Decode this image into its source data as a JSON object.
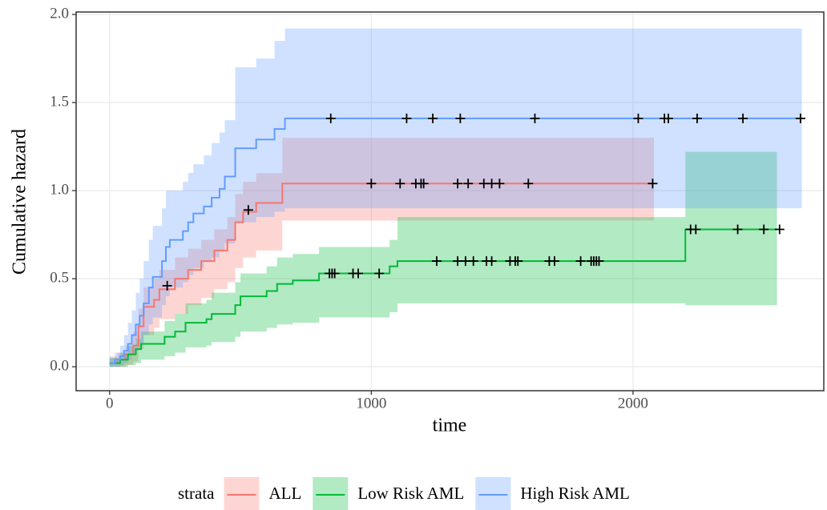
{
  "chart_data": {
    "type": "step",
    "x_label": "time",
    "y_label": "Cumulative hazard",
    "legend_title": "strata",
    "legend_position": "bottom",
    "grid": true,
    "xlim": [
      -128,
      2729
    ],
    "ylim": [
      -0.136,
      2.014
    ],
    "xticks": [
      0,
      1000,
      2000
    ],
    "yticks": [
      {
        "value": 0,
        "label": "0.0"
      },
      {
        "value": 0.5,
        "label": "0.5"
      },
      {
        "value": 1,
        "label": "1.0"
      },
      {
        "value": 1.5,
        "label": "1.5"
      },
      {
        "value": 2,
        "label": "2.0"
      }
    ],
    "series": [
      {
        "name": "ALL",
        "color": "#F8766D",
        "x": [
          0,
          30,
          60,
          90,
          110,
          130,
          170,
          190,
          250,
          300,
          350,
          400,
          450,
          480,
          510,
          560,
          660,
          2080
        ],
        "values": [
          0.02,
          0.04,
          0.07,
          0.12,
          0.23,
          0.34,
          0.38,
          0.44,
          0.5,
          0.55,
          0.6,
          0.66,
          0.72,
          0.82,
          0.88,
          0.93,
          1.04,
          1.04
        ],
        "upper": [
          0.06,
          0.08,
          0.12,
          0.2,
          0.33,
          0.45,
          0.5,
          0.55,
          0.62,
          0.67,
          0.72,
          0.78,
          0.85,
          0.98,
          1.05,
          1.1,
          1.3,
          1.3
        ],
        "lower": [
          0,
          0,
          0.01,
          0.03,
          0.1,
          0.18,
          0.22,
          0.27,
          0.3,
          0.35,
          0.39,
          0.44,
          0.48,
          0.56,
          0.62,
          0.66,
          0.83,
          0.83
        ],
        "censored": {
          "x": [
            220,
            530,
            1000,
            1110,
            1170,
            1190,
            1200,
            1330,
            1370,
            1430,
            1460,
            1490,
            1600,
            2075
          ],
          "values": [
            0.46,
            0.89,
            1.04,
            1.04,
            1.04,
            1.04,
            1.04,
            1.04,
            1.04,
            1.04,
            1.04,
            1.04,
            1.04,
            1.04
          ]
        }
      },
      {
        "name": "Low Risk AML",
        "color": "#00BA38",
        "x": [
          0,
          40,
          70,
          100,
          120,
          210,
          250,
          290,
          370,
          390,
          480,
          500,
          600,
          640,
          700,
          800,
          1070,
          1100,
          2200,
          2550
        ],
        "values": [
          0.02,
          0.04,
          0.07,
          0.1,
          0.13,
          0.17,
          0.2,
          0.25,
          0.27,
          0.3,
          0.35,
          0.4,
          0.43,
          0.47,
          0.49,
          0.53,
          0.57,
          0.6,
          0.78,
          0.78
        ],
        "upper": [
          0.05,
          0.08,
          0.12,
          0.16,
          0.2,
          0.26,
          0.3,
          0.36,
          0.38,
          0.42,
          0.48,
          0.53,
          0.57,
          0.62,
          0.64,
          0.68,
          0.72,
          0.85,
          1.22,
          1.22
        ],
        "lower": [
          0,
          0,
          0.01,
          0.02,
          0.04,
          0.06,
          0.08,
          0.11,
          0.12,
          0.14,
          0.17,
          0.2,
          0.22,
          0.24,
          0.25,
          0.28,
          0.31,
          0.36,
          0.35,
          0.35
        ],
        "censored": {
          "x": [
            840,
            850,
            860,
            930,
            950,
            1030,
            1250,
            1330,
            1360,
            1390,
            1440,
            1460,
            1530,
            1550,
            1560,
            1680,
            1700,
            1800,
            1840,
            1850,
            1860,
            1870,
            2220,
            2240,
            2400,
            2500,
            2560
          ],
          "values": [
            0.53,
            0.53,
            0.53,
            0.53,
            0.53,
            0.53,
            0.6,
            0.6,
            0.6,
            0.6,
            0.6,
            0.6,
            0.6,
            0.6,
            0.6,
            0.6,
            0.6,
            0.6,
            0.6,
            0.6,
            0.6,
            0.6,
            0.78,
            0.78,
            0.78,
            0.78,
            0.78
          ]
        }
      },
      {
        "name": "High Risk AML",
        "color": "#619CFF",
        "x": [
          0,
          20,
          40,
          55,
          70,
          85,
          100,
          115,
          130,
          150,
          165,
          200,
          215,
          230,
          280,
          300,
          320,
          360,
          390,
          420,
          440,
          480,
          560,
          630,
          670,
          2645
        ],
        "values": [
          0.02,
          0.04,
          0.06,
          0.09,
          0.13,
          0.18,
          0.24,
          0.29,
          0.36,
          0.45,
          0.51,
          0.6,
          0.68,
          0.72,
          0.77,
          0.82,
          0.87,
          0.91,
          0.96,
          1.01,
          1.08,
          1.24,
          1.29,
          1.35,
          1.41,
          1.41
        ],
        "upper": [
          0.05,
          0.08,
          0.12,
          0.18,
          0.25,
          0.32,
          0.42,
          0.5,
          0.6,
          0.72,
          0.8,
          0.9,
          1.0,
          1.0,
          1.05,
          1.1,
          1.15,
          1.2,
          1.27,
          1.33,
          1.4,
          1.7,
          1.75,
          1.85,
          1.92,
          1.92
        ],
        "lower": [
          0,
          0,
          0.01,
          0.02,
          0.04,
          0.07,
          0.1,
          0.13,
          0.18,
          0.24,
          0.28,
          0.35,
          0.4,
          0.45,
          0.48,
          0.52,
          0.56,
          0.6,
          0.62,
          0.66,
          0.7,
          0.82,
          0.85,
          0.88,
          0.9,
          0.9
        ],
        "censored": {
          "x": [
            845,
            1135,
            1235,
            1340,
            1625,
            2020,
            2120,
            2135,
            2245,
            2420,
            2640
          ],
          "values": [
            1.41,
            1.41,
            1.41,
            1.41,
            1.41,
            1.41,
            1.41,
            1.41,
            1.41,
            1.41,
            1.41
          ]
        }
      }
    ]
  }
}
